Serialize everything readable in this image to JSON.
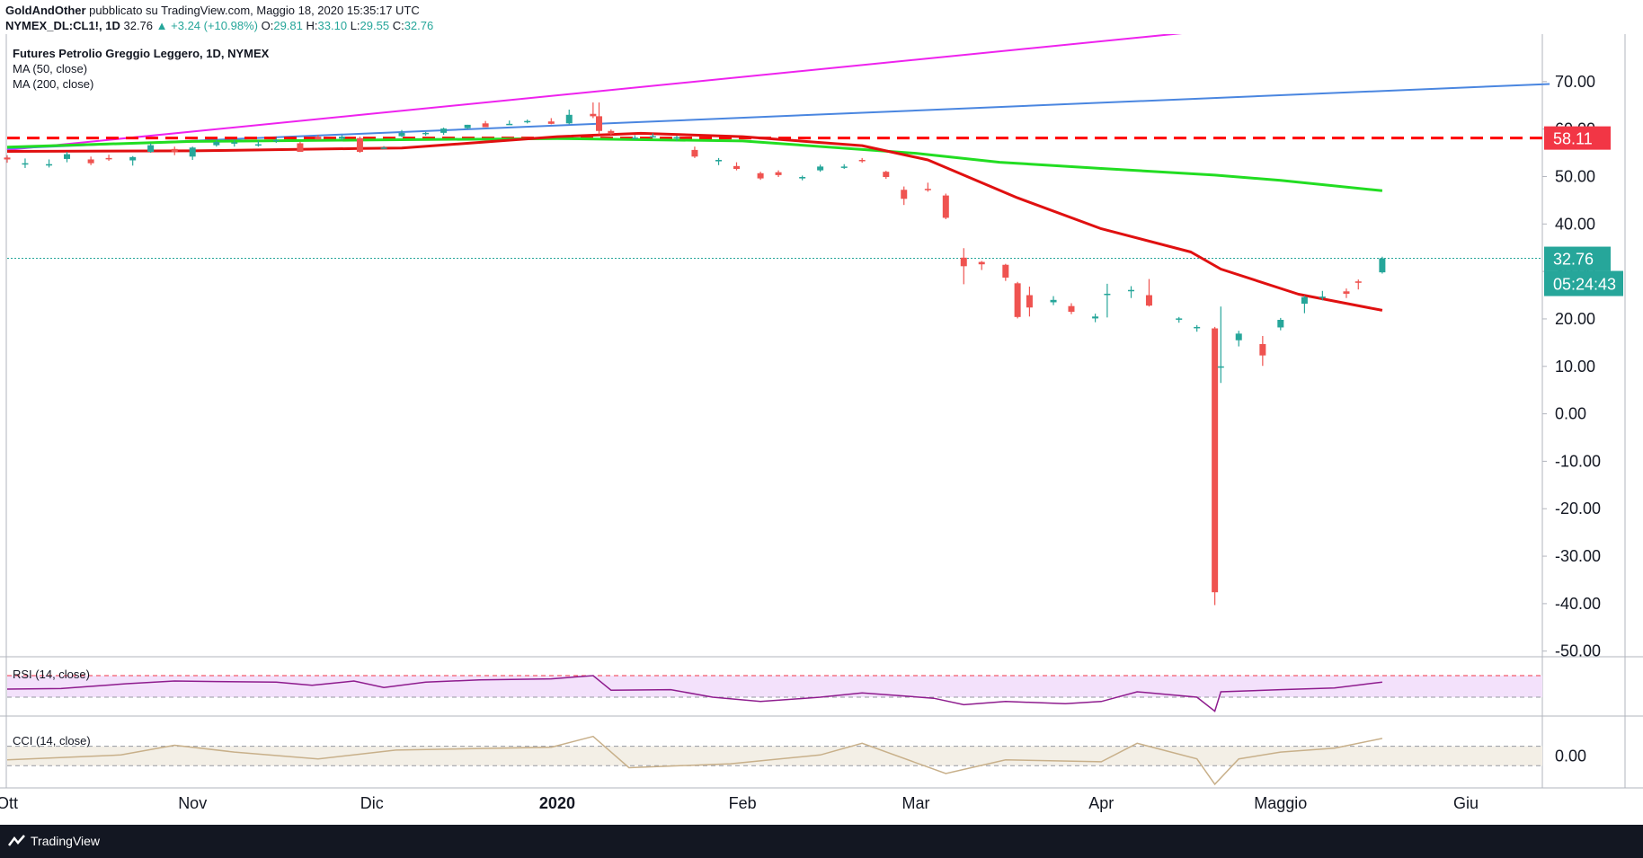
{
  "header": {
    "author": "GoldAndOther",
    "published": "pubblicato su TradingView.com, Maggio 18, 2020 15:35:17 UTC",
    "symbol": "NYMEX_DL:CL1!, 1D",
    "last": "32.76",
    "change": "▲ +3.24 (+10.98%)",
    "o_label": "O:",
    "o": "29.81",
    "h_label": "H:",
    "h": "33.10",
    "l_label": "L:",
    "l": "29.55",
    "c_label": "C:",
    "c": "32.76"
  },
  "legend": {
    "title": "Futures Petrolio Greggio Leggero, 1D, NYMEX",
    "ma50": "MA (50, close)",
    "ma200": "MA (200, close)",
    "rsi": "RSI (14, close)",
    "cci": "CCI (14, close)"
  },
  "footer": {
    "brand": "TradingView"
  },
  "colors": {
    "up": "#26a69a",
    "down": "#ef5350",
    "ma50": "#e01010",
    "ma200": "#22dd22",
    "trend_magenta": "#ee22ee",
    "trend_blue": "#4a86e0",
    "rsi": "#8e1c8e",
    "cci": "#c8b08a"
  },
  "chart_data": {
    "type": "candlestick",
    "title": "Futures Petrolio Greggio Leggero, 1D, NYMEX",
    "y_ticks": [
      70,
      60,
      50,
      40,
      30,
      20,
      10,
      0,
      -10,
      -20,
      -30,
      -40,
      -50
    ],
    "ylim": [
      -51,
      80
    ],
    "x_labels": [
      {
        "label": "Ott",
        "date": "2019-10-01"
      },
      {
        "label": "Nov",
        "date": "2019-11-01"
      },
      {
        "label": "Dic",
        "date": "2019-12-01"
      },
      {
        "label": "2020",
        "date": "2020-01-01"
      },
      {
        "label": "Feb",
        "date": "2020-02-01"
      },
      {
        "label": "Mar",
        "date": "2020-03-01"
      },
      {
        "label": "Apr",
        "date": "2020-04-01"
      },
      {
        "label": "Maggio",
        "date": "2020-05-01"
      },
      {
        "label": "Giu",
        "date": "2020-06-01"
      }
    ],
    "horizontal_line": {
      "value": 58.11,
      "label": "58.11",
      "style": "dashed",
      "color": "#ff0000"
    },
    "last_price": {
      "value": 32.76,
      "label": "32.76",
      "countdown": "05:24:43"
    },
    "candles": [
      [
        "2019-10-01",
        54.0,
        54.5,
        52.9,
        53.6
      ],
      [
        "2019-10-04",
        52.7,
        53.8,
        51.8,
        52.8
      ],
      [
        "2019-10-08",
        52.6,
        53.6,
        51.9,
        52.6
      ],
      [
        "2019-10-11",
        53.7,
        55.2,
        53.0,
        54.7
      ],
      [
        "2019-10-15",
        53.6,
        54.2,
        52.4,
        52.8
      ],
      [
        "2019-10-18",
        53.9,
        54.6,
        53.3,
        53.8
      ],
      [
        "2019-10-22",
        53.4,
        54.3,
        52.3,
        54.1
      ],
      [
        "2019-10-25",
        55.2,
        57.0,
        55.0,
        56.6
      ],
      [
        "2019-10-29",
        55.8,
        56.3,
        54.5,
        55.1
      ],
      [
        "2019-11-01",
        54.2,
        56.3,
        53.5,
        56.1
      ],
      [
        "2019-11-05",
        56.6,
        57.8,
        56.3,
        57.3
      ],
      [
        "2019-11-08",
        57.2,
        57.8,
        56.3,
        57.2
      ],
      [
        "2019-11-12",
        56.8,
        57.6,
        56.3,
        56.8
      ],
      [
        "2019-11-15",
        57.6,
        58.2,
        57.1,
        57.7
      ],
      [
        "2019-11-19",
        57.0,
        57.3,
        55.2,
        55.2
      ],
      [
        "2019-11-22",
        58.4,
        58.8,
        57.8,
        57.8
      ],
      [
        "2019-11-26",
        58.0,
        58.7,
        57.6,
        58.4
      ],
      [
        "2019-11-29",
        58.1,
        58.4,
        55.0,
        55.2
      ],
      [
        "2019-12-03",
        56.1,
        56.4,
        55.8,
        56.1
      ],
      [
        "2019-12-06",
        58.5,
        59.8,
        58.3,
        59.2
      ],
      [
        "2019-12-10",
        59.0,
        59.4,
        58.6,
        59.2
      ],
      [
        "2019-12-13",
        59.2,
        60.3,
        58.8,
        60.1
      ],
      [
        "2019-12-17",
        60.2,
        60.9,
        60.0,
        60.9
      ],
      [
        "2019-12-20",
        61.2,
        61.7,
        60.4,
        60.4
      ],
      [
        "2019-12-24",
        61.1,
        61.8,
        61.0,
        61.1
      ],
      [
        "2019-12-27",
        61.7,
        62.0,
        61.2,
        61.7
      ],
      [
        "2019-12-31",
        61.6,
        62.3,
        61.0,
        61.1
      ],
      [
        "2020-01-03",
        61.2,
        64.1,
        61.0,
        63.0
      ],
      [
        "2020-01-07",
        63.2,
        65.6,
        62.3,
        62.7
      ],
      [
        "2020-01-08",
        62.7,
        65.6,
        58.9,
        59.6
      ],
      [
        "2020-01-10",
        59.6,
        59.9,
        58.8,
        59.0
      ],
      [
        "2020-01-14",
        58.1,
        58.7,
        57.8,
        58.2
      ],
      [
        "2020-01-17",
        58.5,
        59.1,
        58.2,
        58.5
      ],
      [
        "2020-01-21",
        58.3,
        58.6,
        57.5,
        58.3
      ],
      [
        "2020-01-24",
        55.6,
        56.3,
        53.9,
        54.2
      ],
      [
        "2020-01-28",
        53.2,
        53.9,
        52.4,
        53.5
      ],
      [
        "2020-01-31",
        52.2,
        53.0,
        51.3,
        51.6
      ],
      [
        "2020-02-04",
        50.7,
        51.0,
        49.3,
        49.6
      ],
      [
        "2020-02-07",
        50.9,
        51.3,
        49.9,
        50.3
      ],
      [
        "2020-02-11",
        49.6,
        50.2,
        49.2,
        49.9
      ],
      [
        "2020-02-14",
        51.3,
        52.5,
        51.0,
        52.1
      ],
      [
        "2020-02-18",
        52.1,
        52.6,
        51.6,
        52.1
      ],
      [
        "2020-02-21",
        53.5,
        53.9,
        52.9,
        53.4
      ],
      [
        "2020-02-25",
        51.0,
        51.2,
        49.5,
        49.9
      ],
      [
        "2020-02-28",
        47.2,
        47.9,
        44.0,
        45.3
      ],
      [
        "2020-03-03",
        47.4,
        48.7,
        46.8,
        47.2
      ],
      [
        "2020-03-06",
        46.0,
        46.4,
        41.0,
        41.3
      ],
      [
        "2020-03-09",
        32.9,
        34.9,
        27.3,
        31.1
      ],
      [
        "2020-03-12",
        32.0,
        32.2,
        30.3,
        31.5
      ],
      [
        "2020-03-16",
        31.4,
        31.6,
        28.0,
        28.7
      ],
      [
        "2020-03-18",
        27.5,
        27.8,
        20.1,
        20.4
      ],
      [
        "2020-03-20",
        25.0,
        26.8,
        20.5,
        22.4
      ],
      [
        "2020-03-24",
        23.5,
        24.8,
        22.9,
        24.0
      ],
      [
        "2020-03-27",
        22.7,
        23.3,
        21.0,
        21.5
      ],
      [
        "2020-03-31",
        20.1,
        21.1,
        19.3,
        20.5
      ],
      [
        "2020-04-02",
        25.3,
        27.4,
        20.3,
        25.3
      ],
      [
        "2020-04-06",
        26.1,
        26.9,
        24.4,
        26.1
      ],
      [
        "2020-04-09",
        25.0,
        28.4,
        22.6,
        22.8
      ],
      [
        "2020-04-14",
        20.1,
        20.4,
        19.2,
        20.1
      ],
      [
        "2020-04-17",
        18.3,
        18.7,
        17.3,
        18.3
      ],
      [
        "2020-04-20",
        18.0,
        18.3,
        -40.3,
        -37.6
      ],
      [
        "2020-04-21",
        10.0,
        22.6,
        6.5,
        10.0
      ],
      [
        "2020-04-24",
        15.5,
        17.5,
        14.2,
        16.9
      ],
      [
        "2020-04-28",
        14.7,
        16.4,
        10.1,
        12.3
      ],
      [
        "2020-05-01",
        18.2,
        20.2,
        17.6,
        19.8
      ],
      [
        "2020-05-05",
        23.2,
        24.9,
        21.2,
        24.6
      ],
      [
        "2020-05-08",
        24.5,
        25.9,
        23.9,
        24.7
      ],
      [
        "2020-05-12",
        25.8,
        26.4,
        24.4,
        25.3
      ],
      [
        "2020-05-14",
        27.9,
        28.3,
        26.2,
        27.6
      ],
      [
        "2020-05-18",
        29.81,
        33.1,
        29.55,
        32.76
      ]
    ],
    "ma50": [
      [
        "2019-10-01",
        55.3
      ],
      [
        "2019-11-01",
        55.4
      ],
      [
        "2019-11-29",
        55.9
      ],
      [
        "2019-12-06",
        56.0
      ],
      [
        "2020-01-01",
        58.4
      ],
      [
        "2020-01-15",
        59.1
      ],
      [
        "2020-02-01",
        58.4
      ],
      [
        "2020-02-21",
        56.5
      ],
      [
        "2020-03-03",
        53.5
      ],
      [
        "2020-03-18",
        45.5
      ],
      [
        "2020-04-01",
        39.0
      ],
      [
        "2020-04-16",
        34.1
      ],
      [
        "2020-04-21",
        30.5
      ],
      [
        "2020-05-04",
        25.2
      ],
      [
        "2020-05-18",
        21.8
      ]
    ],
    "ma200": [
      [
        "2019-10-01",
        56.2
      ],
      [
        "2019-11-01",
        57.4
      ],
      [
        "2019-12-01",
        57.7
      ],
      [
        "2020-01-01",
        58.0
      ],
      [
        "2020-02-01",
        57.5
      ],
      [
        "2020-03-01",
        54.9
      ],
      [
        "2020-03-15",
        53.0
      ],
      [
        "2020-04-01",
        51.7
      ],
      [
        "2020-04-20",
        50.3
      ],
      [
        "2020-05-01",
        49.2
      ],
      [
        "2020-05-18",
        47.0
      ]
    ],
    "trendlines": [
      {
        "color": "#ee22ee",
        "points": [
          [
            "2019-10-01",
            55.6
          ],
          [
            "2020-04-21",
            81.0
          ]
        ]
      },
      {
        "color": "#4a86e0",
        "points": [
          [
            "2019-10-01",
            55.9
          ],
          [
            "2020-06-15",
            69.5
          ]
        ]
      }
    ],
    "rsi": {
      "name": "RSI (14, close)",
      "ylim": [
        0,
        100
      ],
      "bands": [
        70,
        30
      ],
      "values": [
        [
          "2019-10-01",
          45
        ],
        [
          "2019-10-10",
          46
        ],
        [
          "2019-10-21",
          55
        ],
        [
          "2019-10-29",
          60
        ],
        [
          "2019-11-05",
          59
        ],
        [
          "2019-11-15",
          58
        ],
        [
          "2019-11-21",
          52
        ],
        [
          "2019-11-28",
          60
        ],
        [
          "2019-12-03",
          48
        ],
        [
          "2019-12-10",
          58
        ],
        [
          "2019-12-19",
          62
        ],
        [
          "2019-12-31",
          64
        ],
        [
          "2020-01-07",
          70
        ],
        [
          "2020-01-10",
          43
        ],
        [
          "2020-01-20",
          44
        ],
        [
          "2020-01-27",
          30
        ],
        [
          "2020-02-04",
          22
        ],
        [
          "2020-02-14",
          30
        ],
        [
          "2020-02-21",
          38
        ],
        [
          "2020-03-04",
          28
        ],
        [
          "2020-03-09",
          16
        ],
        [
          "2020-03-16",
          22
        ],
        [
          "2020-03-26",
          18
        ],
        [
          "2020-04-01",
          22
        ],
        [
          "2020-04-07",
          40
        ],
        [
          "2020-04-17",
          30
        ],
        [
          "2020-04-20",
          4
        ],
        [
          "2020-04-21",
          40
        ],
        [
          "2020-05-01",
          44
        ],
        [
          "2020-05-10",
          47
        ],
        [
          "2020-05-18",
          58
        ]
      ]
    },
    "cci": {
      "name": "CCI (14, close)",
      "y_ticks": [
        0
      ],
      "ylim": [
        -300,
        400
      ],
      "bands": [
        100,
        -100
      ],
      "values": [
        [
          "2019-10-01",
          -40
        ],
        [
          "2019-10-20",
          10
        ],
        [
          "2019-10-29",
          110
        ],
        [
          "2019-11-08",
          40
        ],
        [
          "2019-11-22",
          -30
        ],
        [
          "2019-12-05",
          60
        ],
        [
          "2019-12-31",
          90
        ],
        [
          "2020-01-07",
          200
        ],
        [
          "2020-01-13",
          -120
        ],
        [
          "2020-01-30",
          -80
        ],
        [
          "2020-02-14",
          10
        ],
        [
          "2020-02-21",
          130
        ],
        [
          "2020-03-06",
          -180
        ],
        [
          "2020-03-16",
          -40
        ],
        [
          "2020-04-01",
          -60
        ],
        [
          "2020-04-07",
          130
        ],
        [
          "2020-04-17",
          -30
        ],
        [
          "2020-04-20",
          -290
        ],
        [
          "2020-04-24",
          -30
        ],
        [
          "2020-05-01",
          40
        ],
        [
          "2020-05-10",
          80
        ],
        [
          "2020-05-18",
          180
        ]
      ]
    }
  }
}
